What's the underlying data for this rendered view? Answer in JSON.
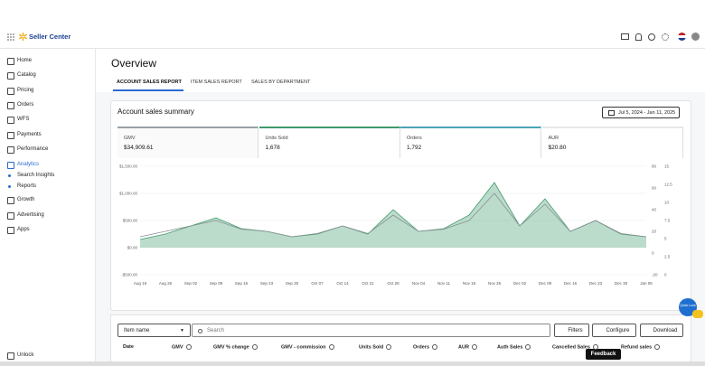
{
  "header": {
    "logo": "Seller Center"
  },
  "sidebar": {
    "items": [
      "Home",
      "Catalog",
      "Pricing",
      "Orders",
      "WFS",
      "Payments",
      "Performance",
      "Analytics",
      "Growth",
      "Advertising",
      "Apps"
    ],
    "subitems": [
      "Search Insights",
      "Reports"
    ],
    "footer": "Unlock"
  },
  "page": {
    "title": "Overview",
    "tabs": [
      "ACCOUNT SALES REPORT",
      "ITEM SALES REPORT",
      "SALES BY DEPARTMENT"
    ]
  },
  "summary": {
    "title": "Account sales summary",
    "date_range": "Jul 5, 2024 - Jan 11, 2025",
    "metrics": [
      {
        "label": "GMV",
        "value": "$34,909.61"
      },
      {
        "label": "Units Sold",
        "value": "1,678"
      },
      {
        "label": "Orders",
        "value": "1,792"
      },
      {
        "label": "AUR",
        "value": "$20.80"
      }
    ]
  },
  "chart_data": {
    "type": "line",
    "categories": [
      "Aug 19",
      "Aug 26",
      "Sep 02",
      "Sep 09",
      "Sep 16",
      "Sep 23",
      "Sep 30",
      "Oct 07",
      "Oct 14",
      "Oct 21",
      "Oct 28",
      "Nov 04",
      "Nov 11",
      "Nov 18",
      "Nov 25",
      "Dec 02",
      "Dec 09",
      "Dec 16",
      "Dec 23",
      "Dec 30",
      "Jan 06"
    ],
    "series": [
      {
        "name": "GMV",
        "color": "#3f9a6a",
        "values": [
          150,
          250,
          400,
          550,
          350,
          300,
          200,
          250,
          400,
          250,
          700,
          300,
          350,
          600,
          1200,
          400,
          900,
          300,
          500,
          250,
          200
        ]
      },
      {
        "name": "Units Sold",
        "color": "#8a8f96",
        "axis": "y2",
        "values": [
          15,
          20,
          25,
          30,
          22,
          20,
          15,
          18,
          25,
          18,
          35,
          20,
          22,
          30,
          55,
          25,
          45,
          20,
          30,
          18,
          15
        ]
      }
    ],
    "ylim": [
      -500,
      1500
    ],
    "yticks": [
      {
        "value": 1500,
        "label": "$1,500.00"
      },
      {
        "value": 1000,
        "label": "$1,000.00"
      },
      {
        "value": 500,
        "label": "$500.00"
      },
      {
        "value": 0,
        "label": "$0.00"
      },
      {
        "value": -500,
        "label": "-$500.00"
      }
    ],
    "y2lim": [
      -20,
      80
    ],
    "y2ticks": [
      80,
      60,
      40,
      20,
      0,
      -20
    ],
    "y3lim": [
      0,
      15
    ],
    "y3ticks": [
      15,
      12.5,
      10,
      7.5,
      5,
      2.5,
      0
    ],
    "grid": true
  },
  "table": {
    "filter": "Item name",
    "search_placeholder": "Search",
    "buttons": [
      "Filters",
      "Configure",
      "Download"
    ],
    "columns": [
      "Date",
      "GMV",
      "GMV % change",
      "GMV - commission",
      "Units Sold",
      "Orders",
      "AUR",
      "Auth Sales",
      "Cancelled Sales",
      "Refund sales"
    ]
  },
  "feedback": "Feedback",
  "quick_look": "Quick Look"
}
